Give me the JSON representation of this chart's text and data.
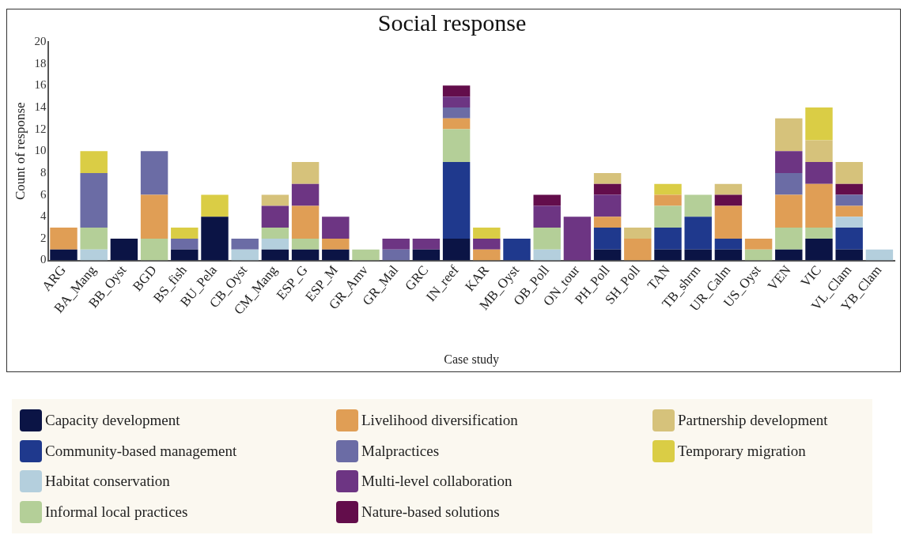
{
  "chart_data": {
    "type": "bar",
    "stacked": true,
    "title": "Social response",
    "xlabel": "Case study",
    "ylabel": "Count of response",
    "categories": [
      "ARG",
      "BA_Mang",
      "BB_Oyst",
      "BGD",
      "BS_fish",
      "BU_Pela",
      "CB_Oyst",
      "CM_Mang",
      "ESP_G",
      "ESP_M",
      "GR_Amv",
      "GR_Mal",
      "GRC",
      "IN_reef",
      "KAR",
      "MB_Oyst",
      "OB_Poll",
      "ON_tour",
      "PH_Poll",
      "SH_Poll",
      "TAN",
      "TB_shrm",
      "UR_Calm",
      "US_Oyst",
      "VEN",
      "VIC",
      "VL_Clam",
      "YB_Clam"
    ],
    "series": [
      {
        "name": "Capacity development",
        "color": "#0b1445",
        "values": [
          1,
          0,
          2,
          0,
          1,
          4,
          0,
          1,
          1,
          1,
          0,
          0,
          1,
          2,
          0,
          0,
          0,
          0,
          1,
          0,
          1,
          1,
          1,
          0,
          1,
          2,
          1,
          0
        ]
      },
      {
        "name": "Community-based management",
        "color": "#1f398d",
        "values": [
          0,
          0,
          0,
          0,
          0,
          0,
          0,
          0,
          0,
          0,
          0,
          0,
          0,
          7,
          0,
          2,
          0,
          0,
          2,
          0,
          2,
          3,
          1,
          0,
          0,
          0,
          2,
          0
        ]
      },
      {
        "name": "Habitat conservation",
        "color": "#b4cfdd",
        "values": [
          0,
          1,
          0,
          0,
          0,
          0,
          1,
          1,
          0,
          0,
          0,
          0,
          0,
          0,
          0,
          0,
          1,
          0,
          0,
          0,
          0,
          0,
          0,
          0,
          0,
          0,
          1,
          1
        ]
      },
      {
        "name": "Informal local practices",
        "color": "#b4cf98",
        "values": [
          0,
          2,
          0,
          2,
          0,
          0,
          0,
          1,
          1,
          0,
          1,
          0,
          0,
          3,
          0,
          0,
          2,
          0,
          0,
          0,
          2,
          2,
          0,
          1,
          2,
          1,
          0,
          0
        ]
      },
      {
        "name": "Livelihood diversification",
        "color": "#e09e55",
        "values": [
          2,
          0,
          0,
          4,
          0,
          0,
          0,
          0,
          3,
          1,
          0,
          0,
          0,
          1,
          1,
          0,
          0,
          0,
          1,
          2,
          1,
          0,
          3,
          1,
          3,
          4,
          1,
          0
        ]
      },
      {
        "name": "Malpractices",
        "color": "#6b6ca5",
        "values": [
          0,
          5,
          0,
          4,
          1,
          0,
          1,
          0,
          0,
          0,
          0,
          1,
          0,
          1,
          0,
          0,
          0,
          0,
          0,
          0,
          0,
          0,
          0,
          0,
          2,
          0,
          1,
          0
        ]
      },
      {
        "name": "Multi-level collaboration",
        "color": "#6d3583",
        "values": [
          0,
          0,
          0,
          0,
          0,
          0,
          0,
          2,
          2,
          2,
          0,
          1,
          1,
          1,
          1,
          0,
          2,
          4,
          2,
          0,
          0,
          0,
          0,
          0,
          2,
          2,
          0,
          0
        ]
      },
      {
        "name": "Nature-based solutions",
        "color": "#630d4b",
        "values": [
          0,
          0,
          0,
          0,
          0,
          0,
          0,
          0,
          0,
          0,
          0,
          0,
          0,
          1,
          0,
          0,
          1,
          0,
          1,
          0,
          0,
          0,
          1,
          0,
          0,
          0,
          1,
          0
        ]
      },
      {
        "name": "Partnership development",
        "color": "#d6c27b",
        "values": [
          0,
          0,
          0,
          0,
          0,
          0,
          0,
          1,
          2,
          0,
          0,
          0,
          0,
          0,
          0,
          0,
          0,
          0,
          1,
          1,
          0,
          0,
          1,
          0,
          3,
          2,
          2,
          0
        ]
      },
      {
        "name": "Temporary migration",
        "color": "#dacd45",
        "values": [
          0,
          2,
          0,
          0,
          1,
          2,
          0,
          0,
          0,
          0,
          0,
          0,
          0,
          0,
          1,
          0,
          0,
          0,
          0,
          0,
          1,
          0,
          0,
          0,
          0,
          3,
          0,
          0
        ]
      }
    ],
    "ylim": [
      0,
      20
    ],
    "yticks": [
      0,
      2,
      4,
      6,
      8,
      10,
      12,
      14,
      16,
      18,
      20
    ],
    "grid": false,
    "legend": "bottom"
  }
}
